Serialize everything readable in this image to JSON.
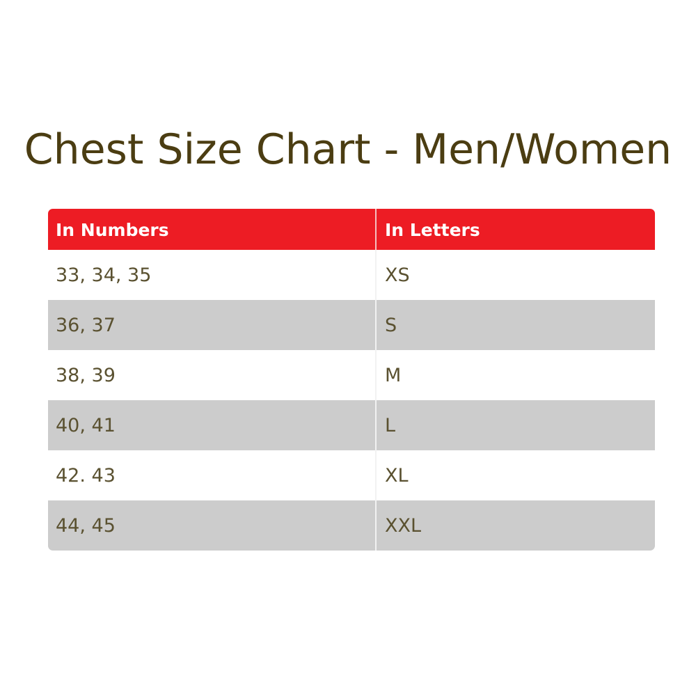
{
  "title": "Chest Size Chart - Men/Women",
  "colors": {
    "header_bg": "#ed1c24",
    "alt_row_bg": "#cccccc",
    "title_color": "#4b3d12",
    "text_color": "#5a5130"
  },
  "table": {
    "headers": [
      "In Numbers",
      "In Letters"
    ],
    "rows": [
      [
        "33, 34, 35",
        "XS"
      ],
      [
        "36, 37",
        "S"
      ],
      [
        "38, 39",
        "M"
      ],
      [
        "40, 41",
        "L"
      ],
      [
        "42. 43",
        "XL"
      ],
      [
        "44, 45",
        "XXL"
      ]
    ]
  }
}
